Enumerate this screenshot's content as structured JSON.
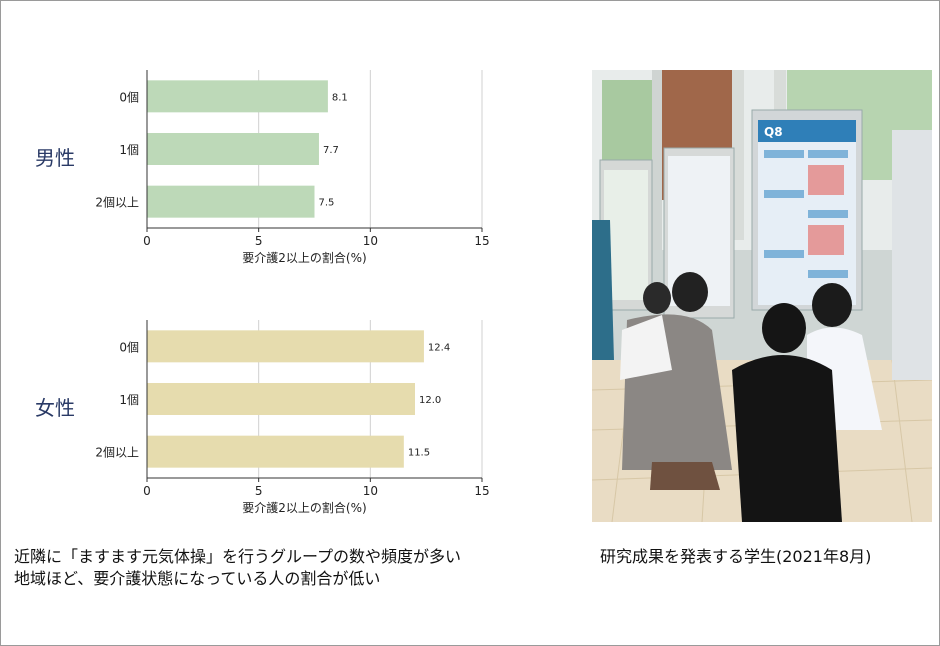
{
  "charts": {
    "men": {
      "group_label": "男性"
    },
    "women": {
      "group_label": "女性"
    }
  },
  "colors": {
    "men_bar": "#bdd9b8",
    "women_bar": "#e6dcae"
  },
  "chart_data": [
    {
      "type": "bar",
      "orientation": "horizontal",
      "group": "男性",
      "categories": [
        "0個",
        "1個",
        "2個以上"
      ],
      "values": [
        8.1,
        7.7,
        7.5
      ],
      "data_labels": [
        "8.1",
        "7.7",
        "7.5"
      ],
      "xlabel": "要介護2以上の割合(%)",
      "xlim": [
        0,
        15
      ],
      "xticks": [
        0,
        5,
        10,
        15
      ],
      "grid": "vertical"
    },
    {
      "type": "bar",
      "orientation": "horizontal",
      "group": "女性",
      "categories": [
        "0個",
        "1個",
        "2個以上"
      ],
      "values": [
        12.4,
        12.0,
        11.5
      ],
      "data_labels": [
        "12.4",
        "12.0",
        "11.5"
      ],
      "xlabel": "要介護2以上の割合(%)",
      "xlim": [
        0,
        15
      ],
      "xticks": [
        0,
        5,
        10,
        15
      ],
      "grid": "vertical"
    }
  ],
  "captions": {
    "left_line1": "近隣に「ますます元気体操」を行うグループの数や頻度が多い",
    "left_line2": "地域ほど、要介護状態になっている人の割合が低い",
    "right": "研究成果を発表する学生(2021年8月)"
  },
  "photo": {
    "poster_label": "Q8"
  }
}
